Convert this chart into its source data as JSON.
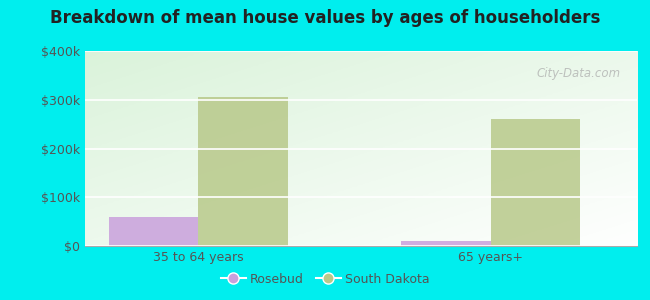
{
  "title": "Breakdown of mean house values by ages of householders",
  "categories": [
    "35 to 64 years",
    "65 years+"
  ],
  "series": {
    "Rosebud": [
      60000,
      10000
    ],
    "South Dakota": [
      305000,
      260000
    ]
  },
  "colors": {
    "Rosebud": "#c9a0dc",
    "South Dakota": "#b8c98a"
  },
  "ylim": [
    0,
    400000
  ],
  "yticks": [
    0,
    100000,
    200000,
    300000,
    400000
  ],
  "ytick_labels": [
    "$0",
    "$100k",
    "$200k",
    "$300k",
    "$400k"
  ],
  "background_color": "#00eeee",
  "watermark": "City-Data.com",
  "bar_width": 0.55,
  "group_positions": [
    1.0,
    2.8
  ]
}
